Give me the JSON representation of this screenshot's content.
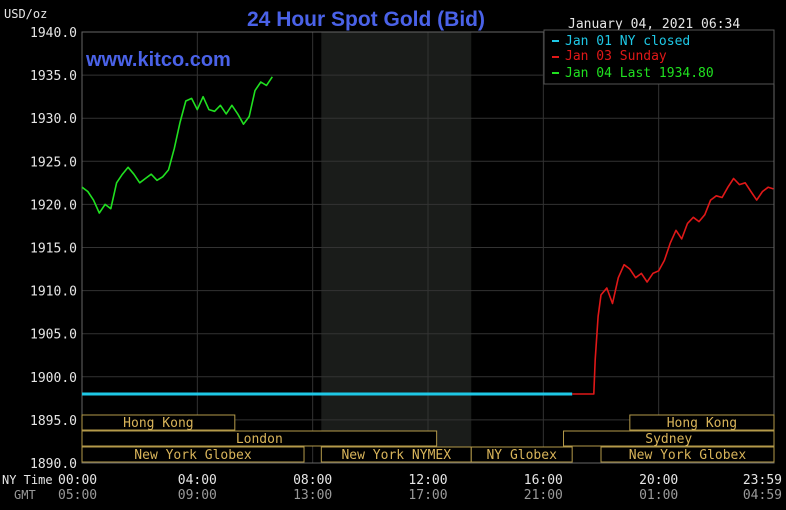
{
  "title": "24 Hour Spot Gold (Bid)",
  "unit_label": "USD/oz",
  "timestamp": "January 04, 2021 06:34",
  "watermark": "www.kitco.com",
  "legend": [
    {
      "label": "Jan 01 NY closed",
      "color": "#1ec8e6"
    },
    {
      "label": "Jan 03 Sunday",
      "color": "#e01818"
    },
    {
      "label": "Jan 04 Last 1934.80",
      "color": "#20e020"
    }
  ],
  "time_labels": {
    "ny_time_caption": "NY Time",
    "gmt_caption": "GMT",
    "ny_times": [
      "00:00",
      "04:00",
      "08:00",
      "12:00",
      "16:00",
      "20:00",
      "23:59"
    ],
    "gmt_times": [
      "05:00",
      "09:00",
      "13:00",
      "17:00",
      "21:00",
      "01:00",
      "04:59"
    ]
  },
  "sessions": [
    {
      "label": "Hong Kong",
      "start": 0.0,
      "end": 5.3,
      "row": 0
    },
    {
      "label": "Hong Kong",
      "start": 19.0,
      "end": 24.0,
      "row": 0
    },
    {
      "label": "London",
      "start": 0.0,
      "end": 12.3,
      "row": 1
    },
    {
      "label": "Sydney",
      "start": 16.7,
      "end": 24.0,
      "row": 1
    },
    {
      "label": "New York Globex",
      "start": 0.0,
      "end": 7.7,
      "row": 2
    },
    {
      "label": "New York NYMEX",
      "start": 8.3,
      "end": 13.5,
      "row": 2
    },
    {
      "label": "NY Globex",
      "start": 13.5,
      "end": 17.0,
      "row": 2
    },
    {
      "label": "New York Globex",
      "start": 18.0,
      "end": 24.0,
      "row": 2
    }
  ],
  "chart_data": {
    "type": "line",
    "title": "24 Hour Spot Gold (Bid)",
    "ylabel": "USD/oz",
    "ylim": [
      1890.0,
      1940.0
    ],
    "yticks": [
      1890.0,
      1895.0,
      1900.0,
      1905.0,
      1910.0,
      1915.0,
      1920.0,
      1925.0,
      1930.0,
      1935.0,
      1940.0
    ],
    "ytick_labels": [
      "1890.0",
      "1895.0",
      "1900.0",
      "1905.0",
      "1910.0",
      "1915.0",
      "1920.0",
      "1925.0",
      "1930.0",
      "1935.0",
      "1940.0"
    ],
    "xlim": [
      0,
      24
    ],
    "xticks_hours": [
      0,
      4,
      8,
      12,
      16,
      20,
      23.98
    ],
    "grid": true,
    "legend_position": "top-right",
    "highlight_band_hours": [
      8.3,
      13.5
    ],
    "series": [
      {
        "name": "Jan 01 NY closed",
        "color": "#1ec8e6",
        "x": [
          0.0,
          17.0
        ],
        "y": [
          1898.0,
          1898.0
        ]
      },
      {
        "name": "Jan 03 Sunday",
        "color": "#e01818",
        "x": [
          17.0,
          17.75,
          17.8,
          17.9,
          18.0,
          18.2,
          18.4,
          18.6,
          18.8,
          19.0,
          19.2,
          19.4,
          19.6,
          19.8,
          20.0,
          20.2,
          20.4,
          20.6,
          20.8,
          21.0,
          21.2,
          21.4,
          21.6,
          21.8,
          22.0,
          22.2,
          22.4,
          22.6,
          22.8,
          23.0,
          23.2,
          23.4,
          23.6,
          23.8,
          23.98
        ],
        "y": [
          1898.0,
          1898.0,
          1902.0,
          1907.0,
          1909.5,
          1910.3,
          1908.5,
          1911.5,
          1913.0,
          1912.5,
          1911.5,
          1912.0,
          1911.0,
          1912.0,
          1912.3,
          1913.5,
          1915.5,
          1917.0,
          1916.0,
          1917.8,
          1918.5,
          1918.0,
          1918.8,
          1920.5,
          1921.0,
          1920.8,
          1922.0,
          1923.0,
          1922.3,
          1922.5,
          1921.5,
          1920.5,
          1921.5,
          1922.0,
          1921.8
        ]
      },
      {
        "name": "Jan 04 Last 1934.80",
        "color": "#20e020",
        "x": [
          0.0,
          0.2,
          0.4,
          0.6,
          0.8,
          1.0,
          1.2,
          1.4,
          1.6,
          1.8,
          2.0,
          2.2,
          2.4,
          2.6,
          2.8,
          3.0,
          3.2,
          3.4,
          3.6,
          3.8,
          4.0,
          4.2,
          4.4,
          4.6,
          4.8,
          5.0,
          5.2,
          5.4,
          5.6,
          5.8,
          6.0,
          6.2,
          6.4,
          6.6
        ],
        "y": [
          1922.0,
          1921.5,
          1920.5,
          1919.0,
          1920.0,
          1919.5,
          1922.5,
          1923.5,
          1924.3,
          1923.5,
          1922.5,
          1923.0,
          1923.5,
          1922.8,
          1923.2,
          1924.0,
          1926.5,
          1929.5,
          1932.0,
          1932.3,
          1931.0,
          1932.5,
          1931.0,
          1930.8,
          1931.5,
          1930.5,
          1931.5,
          1930.5,
          1929.3,
          1930.2,
          1933.2,
          1934.2,
          1933.8,
          1934.8
        ]
      }
    ]
  }
}
